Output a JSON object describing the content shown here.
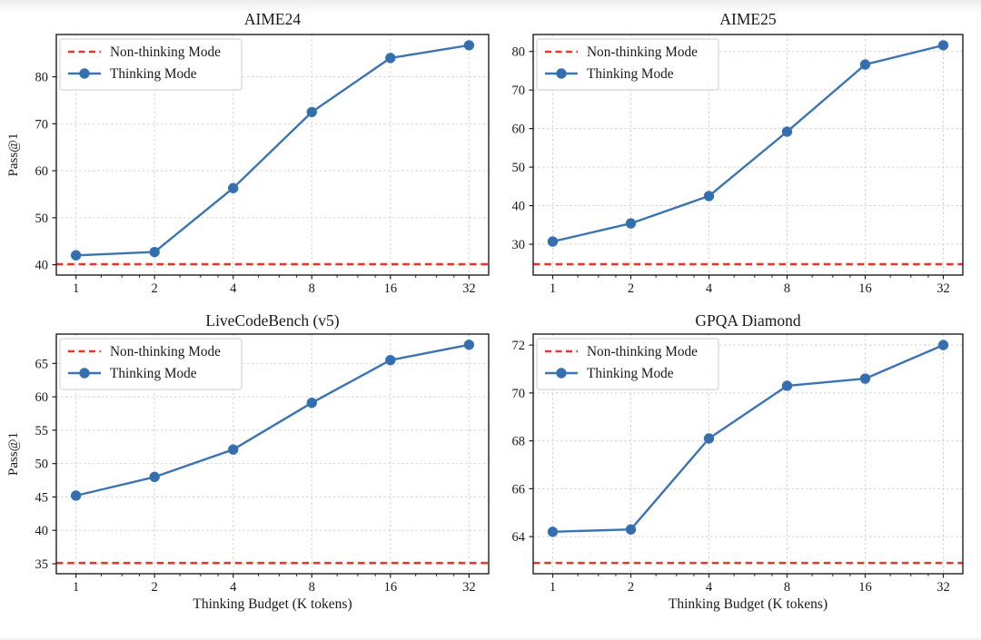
{
  "page": {
    "background": "#ffffff",
    "description": "2x2 grid of benchmark scaling plots: Pass@1 vs Thinking Budget"
  },
  "colors": {
    "thinking_line": "#3a74b2",
    "thinking_marker": "#336fae",
    "non_thinking_line": "#e2382b",
    "grid": "#d4d4d4",
    "spine": "#1f1f1f",
    "text": "#1a1a1a",
    "legend_border": "#cccccc",
    "legend_bg": "#ffffff"
  },
  "legend": {
    "non_thinking_label": "Non-thinking Mode",
    "thinking_label": "Thinking Mode",
    "position": "upper left"
  },
  "shared_axes": {
    "xlabel": "Thinking Budget (K tokens)",
    "ylabel": "Pass@1",
    "xscale": "log2",
    "x_ticks": [
      1,
      2,
      4,
      8,
      16,
      32
    ]
  },
  "chart_data": [
    {
      "type": "line",
      "title": "AIME24",
      "xlabel": "",
      "ylabel": "Pass@1",
      "xscale": "log2",
      "x": [
        1,
        2,
        4,
        8,
        16,
        32
      ],
      "x_tick_labels": [
        "1",
        "2",
        "4",
        "8",
        "16",
        "32"
      ],
      "series": [
        {
          "name": "Non-thinking Mode",
          "type": "hline",
          "value": 40.1,
          "linestyle": "dashed"
        },
        {
          "name": "Thinking Mode",
          "type": "line+marker",
          "values": [
            42.0,
            42.7,
            56.3,
            72.5,
            84.0,
            86.7
          ]
        }
      ],
      "yticks": [
        40,
        50,
        60,
        70,
        80
      ],
      "ylim": [
        37.8,
        89.0
      ],
      "xlim_log2": [
        -0.25,
        5.25
      ],
      "grid": true,
      "legend_position": "upper left"
    },
    {
      "type": "line",
      "title": "AIME25",
      "xlabel": "",
      "ylabel": "",
      "xscale": "log2",
      "x": [
        1,
        2,
        4,
        8,
        16,
        32
      ],
      "x_tick_labels": [
        "1",
        "2",
        "4",
        "8",
        "16",
        "32"
      ],
      "series": [
        {
          "name": "Non-thinking Mode",
          "type": "hline",
          "value": 24.8,
          "linestyle": "dashed"
        },
        {
          "name": "Thinking Mode",
          "type": "line+marker",
          "values": [
            30.7,
            35.4,
            42.5,
            59.2,
            76.6,
            81.6
          ]
        }
      ],
      "yticks": [
        30,
        40,
        50,
        60,
        70,
        80
      ],
      "ylim": [
        22.0,
        84.4
      ],
      "xlim_log2": [
        -0.25,
        5.25
      ],
      "grid": true,
      "legend_position": "upper left"
    },
    {
      "type": "line",
      "title": "LiveCodeBench (v5)",
      "xlabel": "Thinking Budget (K tokens)",
      "ylabel": "Pass@1",
      "xscale": "log2",
      "x": [
        1,
        2,
        4,
        8,
        16,
        32
      ],
      "x_tick_labels": [
        "1",
        "2",
        "4",
        "8",
        "16",
        "32"
      ],
      "series": [
        {
          "name": "Non-thinking Mode",
          "type": "hline",
          "value": 35.1,
          "linestyle": "dashed"
        },
        {
          "name": "Thinking Mode",
          "type": "line+marker",
          "values": [
            45.2,
            48.0,
            52.1,
            59.1,
            65.5,
            67.8
          ]
        }
      ],
      "yticks": [
        35,
        40,
        45,
        50,
        55,
        60,
        65
      ],
      "ylim": [
        33.5,
        69.4
      ],
      "xlim_log2": [
        -0.25,
        5.25
      ],
      "grid": true,
      "legend_position": "upper left"
    },
    {
      "type": "line",
      "title": "GPQA Diamond",
      "xlabel": "Thinking Budget (K tokens)",
      "ylabel": "",
      "xscale": "log2",
      "x": [
        1,
        2,
        4,
        8,
        16,
        32
      ],
      "x_tick_labels": [
        "1",
        "2",
        "4",
        "8",
        "16",
        "32"
      ],
      "series": [
        {
          "name": "Non-thinking Mode",
          "type": "hline",
          "value": 62.9,
          "linestyle": "dashed"
        },
        {
          "name": "Thinking Mode",
          "type": "line+marker",
          "values": [
            64.2,
            64.3,
            68.1,
            70.3,
            70.6,
            72.0
          ]
        }
      ],
      "yticks": [
        64,
        66,
        68,
        70,
        72
      ],
      "ylim": [
        62.45,
        72.46
      ],
      "xlim_log2": [
        -0.25,
        5.25
      ],
      "grid": true,
      "legend_position": "upper left"
    }
  ]
}
